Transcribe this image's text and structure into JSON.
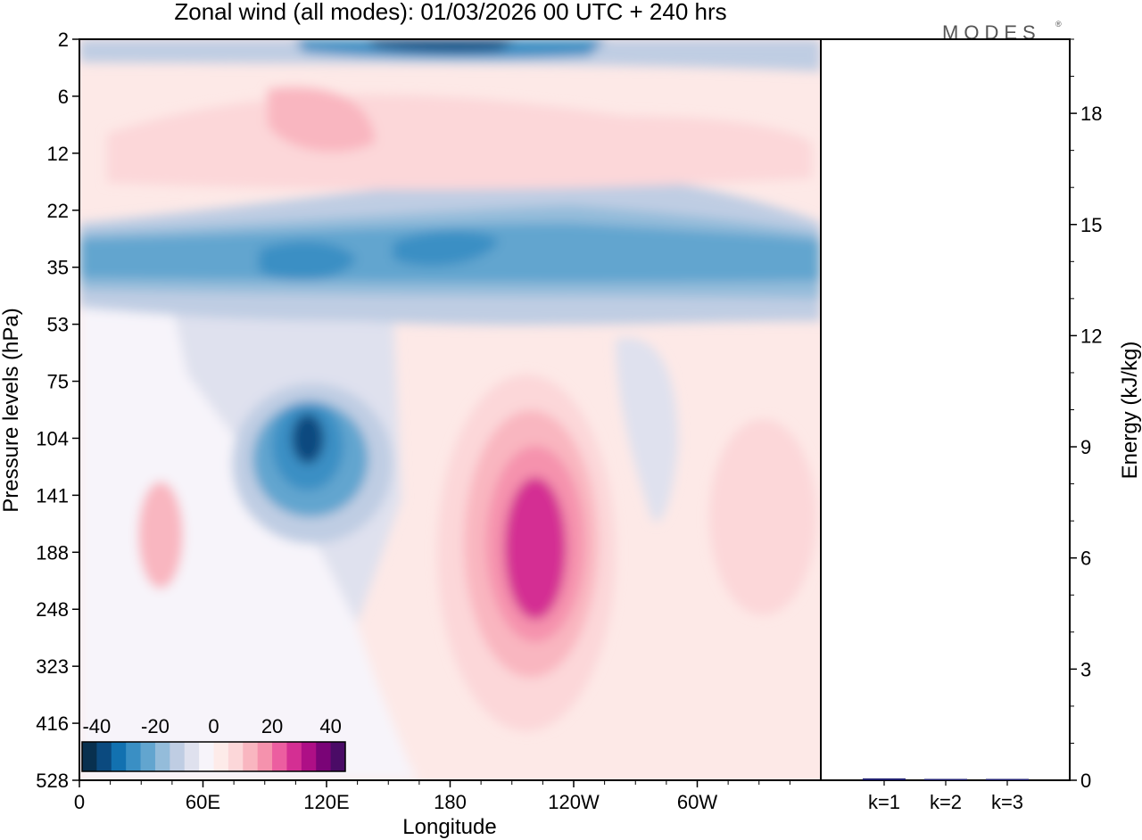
{
  "chart_data": [
    {
      "type": "heatmap",
      "title": "Zonal wind (all modes):  01/03/2026  00 UTC  + 240 hrs",
      "xlabel": "Longitude",
      "ylabel": "Pressure levels (hPa)",
      "x_ticks": [
        "0",
        "60E",
        "120E",
        "180",
        "120W",
        "60W"
      ],
      "x_tick_degrees": [
        0,
        60,
        120,
        180,
        240,
        300
      ],
      "x_range_degrees": [
        0,
        360
      ],
      "y_ticks": [
        "2",
        "6",
        "12",
        "22",
        "35",
        "53",
        "75",
        "104",
        "141",
        "188",
        "248",
        "323",
        "416",
        "528"
      ],
      "colorbar": {
        "tick_labels": [
          "-40",
          "-20",
          "0",
          "20",
          "40"
        ],
        "tick_values": [
          -40,
          -20,
          0,
          20,
          40
        ],
        "range": [
          -45,
          45
        ],
        "step": 5,
        "colors": [
          "#08304f",
          "#0b4a7f",
          "#1271b0",
          "#3a8fc4",
          "#62a5cf",
          "#94bcda",
          "#bfcde3",
          "#dfe1ee",
          "#f7f4fa",
          "#fdebe9",
          "#fcd7d9",
          "#f9b6c0",
          "#f592ad",
          "#ec5ea0",
          "#d42f93",
          "#ae0f86",
          "#7a0477",
          "#4a0b66"
        ]
      },
      "features": [
        {
          "kind": "jet",
          "lon": 110,
          "level": "104",
          "peak": -42
        },
        {
          "kind": "jet",
          "lon": 222,
          "level": "188",
          "peak": 32
        },
        {
          "kind": "band",
          "level": "35",
          "value": -25
        },
        {
          "kind": "band",
          "level": "2",
          "value": -30
        }
      ]
    },
    {
      "type": "bar",
      "ylabel": "Energy (kJ/kg)",
      "categories": [
        "k=1",
        "k=2",
        "k=3"
      ],
      "values": [
        0.05,
        0.03,
        0.02
      ],
      "y_ticks": [
        "0",
        "3",
        "6",
        "9",
        "12",
        "15",
        "18"
      ],
      "ylim": [
        0,
        20
      ],
      "bar_color": "#1f1f6e"
    }
  ],
  "logo": "MODES"
}
